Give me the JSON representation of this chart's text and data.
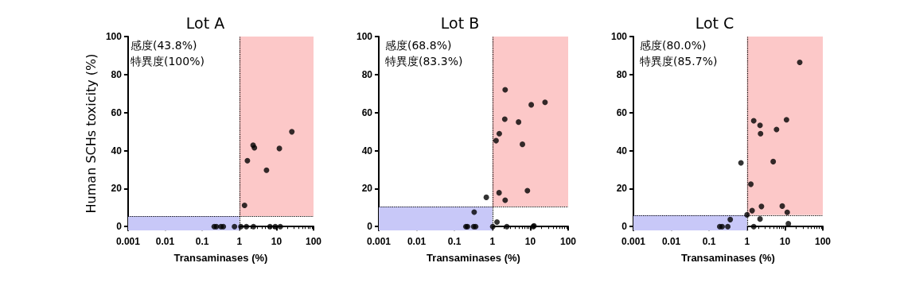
{
  "chart_data": [
    {
      "type": "scatter",
      "title": "Lot A",
      "xlabel": "Transaminases (%)",
      "ylabel": "Human SCHs toxicity (%)",
      "annotations": [
        "感度(43.8%)",
        "特異度(100%)"
      ],
      "log": "x",
      "xlim": [
        0.001,
        100
      ],
      "xticks": [
        0.001,
        0.01,
        0.1,
        1,
        10,
        100
      ],
      "ylim": [
        -2,
        100
      ],
      "yticks": [
        0,
        20,
        40,
        60,
        80,
        100
      ],
      "grid": false,
      "marker": "circle",
      "x": [
        0.21,
        0.24,
        0.32,
        0.37,
        0.74,
        1.1,
        1.55,
        2.4,
        6.7,
        9.3,
        12.7,
        1.38,
        1.65,
        2.35,
        2.55,
        5.4,
        12,
        26
      ],
      "series": [
        {
          "color": "#000000",
          "values": [
            0,
            0,
            0,
            0,
            0,
            0,
            0,
            0,
            0,
            0,
            0,
            11.2,
            34.7,
            42.8,
            41.5,
            29.7,
            41.1,
            49.9
          ]
        }
      ],
      "ref_lines": [
        {
          "axis": "x",
          "value": 1,
          "line_style": "dotted",
          "color": "#000000"
        },
        {
          "axis": "y",
          "value": 5.5,
          "line_style": "dotted",
          "color": "#000000"
        }
      ],
      "bands": [
        {
          "axis": "x",
          "from": 1,
          "to": 100,
          "color": "#fcc8c8"
        },
        {
          "axis": "y",
          "from": -2,
          "to": 5.5,
          "color": "#c8c8f8"
        }
      ]
    },
    {
      "type": "scatter",
      "title": "Lot B",
      "xlabel": "Transaminases (%)",
      "annotations": [
        "感度(68.8%)",
        "特異度(83.3%)"
      ],
      "log": "x",
      "xlim": [
        0.001,
        100
      ],
      "xticks": [
        0.001,
        0.01,
        0.1,
        1,
        10,
        100
      ],
      "ylim": [
        -2,
        100
      ],
      "yticks": [
        0,
        20,
        40,
        60,
        80,
        100
      ],
      "grid": false,
      "marker": "circle",
      "x": [
        0.2,
        0.22,
        0.32,
        0.36,
        0.33,
        0.69,
        1.02,
        1.32,
        1.25,
        1.52,
        1.5,
        2.17,
        2.12,
        2.17,
        2.4,
        4.9,
        6.2,
        8.4,
        10.6,
        12,
        12.5,
        24.5
      ],
      "series": [
        {
          "color": "#000000",
          "values": [
            0,
            0,
            0,
            0,
            7.6,
            15.4,
            0,
            2.4,
            45.2,
            48.9,
            17.8,
            72,
            56.5,
            13.9,
            0,
            55,
            43.3,
            18.9,
            64.1,
            0,
            0.4,
            65.4
          ]
        }
      ],
      "ref_lines": [
        {
          "axis": "x",
          "value": 1,
          "line_style": "dotted",
          "color": "#000000"
        },
        {
          "axis": "y",
          "value": 10.5,
          "line_style": "dotted",
          "color": "#000000"
        }
      ],
      "bands": [
        {
          "axis": "x",
          "from": 1,
          "to": 100,
          "color": "#fcc8c8"
        },
        {
          "axis": "y",
          "from": -2,
          "to": 10.5,
          "color": "#c8c8f8"
        }
      ]
    },
    {
      "type": "scatter",
      "title": "Lot C",
      "xlabel": "Transaminases (%)",
      "annotations": [
        "感度(80.0%)",
        "特異度(85.7%)"
      ],
      "log": "x",
      "xlim": [
        0.001,
        100
      ],
      "xticks": [
        0.001,
        0.01,
        0.1,
        1,
        10,
        100
      ],
      "ylim": [
        -2,
        100
      ],
      "yticks": [
        0,
        20,
        40,
        60,
        80,
        100
      ],
      "grid": false,
      "marker": "circle",
      "x": [
        0.19,
        0.22,
        0.31,
        0.36,
        0.69,
        1.0,
        1.26,
        1.36,
        1.5,
        1.5,
        2.2,
        2.27,
        2.2,
        2.4,
        4.9,
        6.0,
        8.5,
        11,
        11.5,
        12.3,
        24.6
      ],
      "series": [
        {
          "color": "#000000",
          "values": [
            0,
            0,
            0,
            3.7,
            33.5,
            6.2,
            22.3,
            8.4,
            0,
            55.7,
            53.3,
            48.9,
            4.0,
            10.6,
            34.2,
            51.1,
            10.8,
            56.2,
            7.5,
            1.5,
            86.4
          ]
        }
      ],
      "ref_lines": [
        {
          "axis": "x",
          "value": 1,
          "line_style": "dotted",
          "color": "#000000"
        },
        {
          "axis": "y",
          "value": 6,
          "line_style": "dotted",
          "color": "#000000"
        }
      ],
      "bands": [
        {
          "axis": "x",
          "from": 1,
          "to": 100,
          "color": "#fcc8c8"
        },
        {
          "axis": "y",
          "from": -2,
          "to": 6,
          "color": "#c8c8f8"
        }
      ]
    }
  ]
}
